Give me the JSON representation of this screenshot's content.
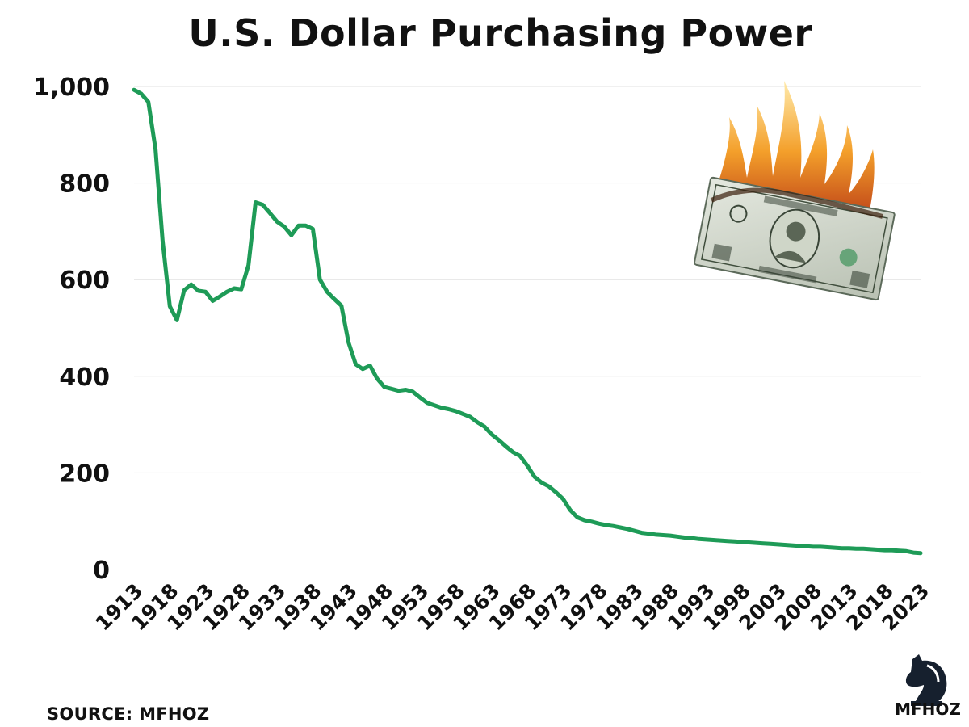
{
  "chart_data": {
    "type": "line",
    "title": "U.S. Dollar Purchasing Power",
    "xlabel": "",
    "ylabel": "",
    "ylim": [
      0,
      1000
    ],
    "yticks": [
      "0",
      "200",
      "400",
      "600",
      "800",
      "1,000"
    ],
    "xticks": [
      "1913",
      "1918",
      "1923",
      "1928",
      "1933",
      "1938",
      "1943",
      "1948",
      "1953",
      "1958",
      "1963",
      "1968",
      "1973",
      "1978",
      "1983",
      "1988",
      "1993",
      "1998",
      "2003",
      "2008",
      "2013",
      "2018",
      "2023"
    ],
    "grid": true,
    "line_color": "#1e9b57",
    "series": [
      {
        "x": [
          1913,
          1914,
          1915,
          1916,
          1917,
          1918,
          1919,
          1920,
          1921,
          1922,
          1923,
          1924,
          1925,
          1926,
          1927,
          1928,
          1929,
          1930,
          1931,
          1932,
          1933,
          1934,
          1935,
          1936,
          1937,
          1938,
          1939,
          1940,
          1941,
          1942,
          1943,
          1944,
          1945,
          1946,
          1947,
          1948,
          1949,
          1950,
          1951,
          1952,
          1953,
          1954,
          1955,
          1956,
          1957,
          1958,
          1959,
          1960,
          1961,
          1962,
          1963,
          1964,
          1965,
          1966,
          1967,
          1968,
          1969,
          1970,
          1971,
          1972,
          1973,
          1974,
          1975,
          1976,
          1977,
          1978,
          1979,
          1980,
          1981,
          1982,
          1983,
          1984,
          1985,
          1986,
          1987,
          1988,
          1989,
          1990,
          1991,
          1992,
          1993,
          1994,
          1995,
          1996,
          1997,
          1998,
          1999,
          2000,
          2001,
          2002,
          2003,
          2004,
          2005,
          2006,
          2007,
          2008,
          2009,
          2010,
          2011,
          2012,
          2013,
          2014,
          2015,
          2016,
          2017,
          2018,
          2019,
          2020,
          2021,
          2022,
          2023
        ],
        "values": [
          993,
          985,
          968,
          870,
          680,
          545,
          516,
          578,
          590,
          577,
          575,
          556,
          565,
          575,
          582,
          580,
          630,
          760,
          755,
          738,
          720,
          710,
          692,
          712,
          712,
          705,
          600,
          575,
          560,
          546,
          470,
          425,
          415,
          422,
          395,
          378,
          374,
          370,
          372,
          368,
          356,
          345,
          340,
          335,
          332,
          328,
          322,
          316,
          305,
          296,
          280,
          268,
          255,
          243,
          235,
          215,
          192,
          180,
          172,
          160,
          146,
          123,
          108,
          102,
          99,
          95,
          92,
          90,
          87,
          84,
          80,
          76,
          74,
          72,
          71,
          70,
          68,
          66,
          65,
          63,
          62,
          61,
          60,
          59,
          58,
          57,
          56,
          55,
          54,
          53,
          52,
          51,
          50,
          49,
          48,
          47,
          47,
          46,
          45,
          44,
          44,
          43,
          43,
          42,
          41,
          40,
          40,
          39,
          38,
          35,
          34
        ]
      }
    ]
  },
  "source": "SOURCE: MFHOZ",
  "brand": "MFHOZ",
  "icons": [
    "burning-dollar-bill-image",
    "horse-knight-logo-icon"
  ]
}
